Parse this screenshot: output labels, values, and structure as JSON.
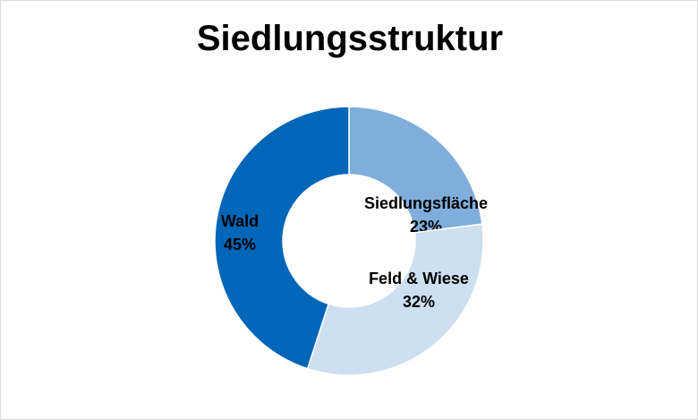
{
  "chart_data": {
    "type": "pie",
    "variant": "donut",
    "title": "Siedlungsstruktur",
    "categories": [
      "Siedlungsfläche",
      "Feld & Wiese",
      "Wald"
    ],
    "values": [
      23,
      32,
      45
    ],
    "value_labels": [
      "23%",
      "32%",
      "45%"
    ],
    "colors": [
      "#7faedb",
      "#cddff0",
      "#0066b8"
    ],
    "legend": "none",
    "start_angle_deg": 0,
    "direction": "clockwise"
  }
}
